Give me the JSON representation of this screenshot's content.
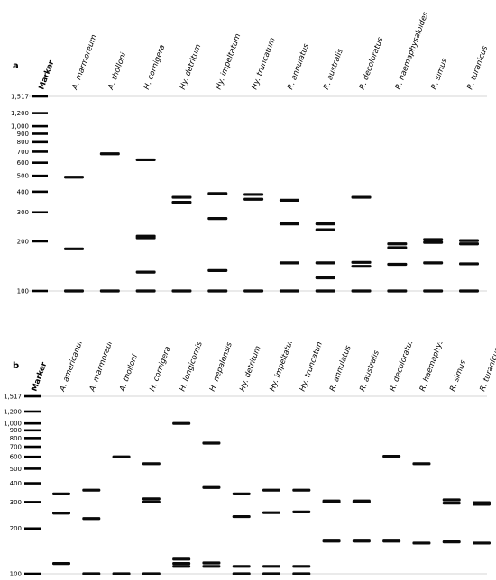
{
  "marker_ladder_bp": [
    100,
    200,
    300,
    400,
    500,
    600,
    700,
    800,
    900,
    1000,
    1200,
    1517
  ],
  "marker_tick_labels": [
    "100",
    "200",
    "300",
    "400",
    "500",
    "600",
    "700",
    "800",
    "900",
    "1,000",
    "1,200",
    "1,517"
  ],
  "marker_label": "Marker",
  "panel_a": {
    "letter": "a",
    "lanes": [
      {
        "label": "A. marmoreum",
        "bands": [
          100,
          180,
          490
        ]
      },
      {
        "label": "A. tholloni",
        "bands": [
          100,
          680
        ]
      },
      {
        "label": "H. cornigera",
        "bands": [
          100,
          130,
          210,
          215,
          625
        ]
      },
      {
        "label": "Hy. detritum",
        "bands": [
          100,
          345,
          370
        ]
      },
      {
        "label": "Hy. impeltatum",
        "bands": [
          100,
          133,
          275,
          390
        ]
      },
      {
        "label": "Hy. truncatum",
        "bands": [
          100,
          360,
          385
        ]
      },
      {
        "label": "R. annulatus",
        "bands": [
          100,
          148,
          255,
          355
        ]
      },
      {
        "label": "R. australis",
        "bands": [
          100,
          120,
          148,
          235,
          255
        ]
      },
      {
        "label": "R. decoloratus",
        "bands": [
          100,
          141,
          149,
          370
        ]
      },
      {
        "label": "R. haemaphysaloides",
        "bands": [
          100,
          145,
          183,
          193
        ]
      },
      {
        "label": "R. simus",
        "bands": [
          100,
          148,
          197,
          205
        ]
      },
      {
        "label": "R. turanicus",
        "bands": [
          100,
          146,
          193,
          202
        ]
      }
    ]
  },
  "panel_b": {
    "letter": "b",
    "lanes": [
      {
        "label": "A. americanum",
        "bands": [
          117,
          253,
          340
        ]
      },
      {
        "label": "A. marmoreum",
        "bands": [
          100,
          233,
          360
        ]
      },
      {
        "label": "A. tholloni",
        "bands": [
          100,
          600
        ]
      },
      {
        "label": "H. cornigera",
        "bands": [
          100,
          300,
          315,
          540
        ]
      },
      {
        "label": "H. longicornis",
        "bands": [
          112,
          117,
          125,
          1000
        ]
      },
      {
        "label": "H. nepalensis",
        "bands": [
          112,
          118,
          375,
          740
        ]
      },
      {
        "label": "Hy. detritum",
        "bands": [
          100,
          112,
          240,
          340
        ]
      },
      {
        "label": "Hy. impeltatum",
        "bands": [
          100,
          112,
          255,
          360
        ]
      },
      {
        "label": "Hy. truncatum",
        "bands": [
          100,
          112,
          258,
          360
        ]
      },
      {
        "label": "R. annulatus",
        "bands": [
          165,
          300,
          305
        ]
      },
      {
        "label": "R. australis",
        "bands": [
          165,
          300,
          305
        ]
      },
      {
        "label": "R. decoloratus",
        "bands": [
          165,
          605
        ]
      },
      {
        "label": "R. haemaphysaloides",
        "bands": [
          160,
          540
        ]
      },
      {
        "label": "R. simus",
        "bands": [
          163,
          295,
          310
        ]
      },
      {
        "label": "R. turanicus",
        "bands": [
          160,
          290,
          297
        ]
      }
    ]
  }
}
